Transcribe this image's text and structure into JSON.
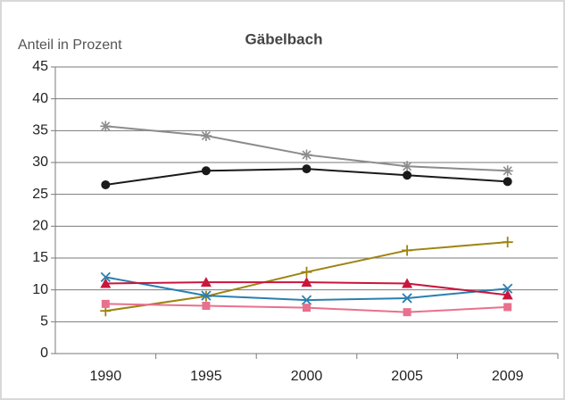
{
  "chart_data": {
    "type": "line",
    "title": "Gäbelbach",
    "y_label": "Anteil in Prozent",
    "categories": [
      "1990",
      "1995",
      "2000",
      "2005",
      "2009"
    ],
    "series": [
      {
        "color": "#8c8c8c",
        "marker": "star",
        "values": [
          35.7,
          34.2,
          31.2,
          29.4,
          28.7
        ]
      },
      {
        "color": "#1a1a1a",
        "marker": "circle",
        "values": [
          26.5,
          28.7,
          29.0,
          28.0,
          27.0
        ]
      },
      {
        "color": "#9c8411",
        "marker": "plus",
        "values": [
          6.7,
          9.0,
          12.8,
          16.2,
          17.5
        ]
      },
      {
        "color": "#2a7fb0",
        "marker": "x",
        "values": [
          12.0,
          9.1,
          8.4,
          8.7,
          10.2
        ]
      },
      {
        "color": "#c8163c",
        "marker": "triangle",
        "values": [
          11.0,
          11.2,
          11.2,
          11.0,
          9.2
        ]
      },
      {
        "color": "#e8718d",
        "marker": "square",
        "values": [
          7.8,
          7.5,
          7.2,
          6.5,
          7.3
        ]
      }
    ],
    "ylim": [
      0,
      45
    ],
    "yticks": [
      0,
      5,
      10,
      15,
      20,
      25,
      30,
      35,
      40,
      45
    ],
    "grid": true
  }
}
